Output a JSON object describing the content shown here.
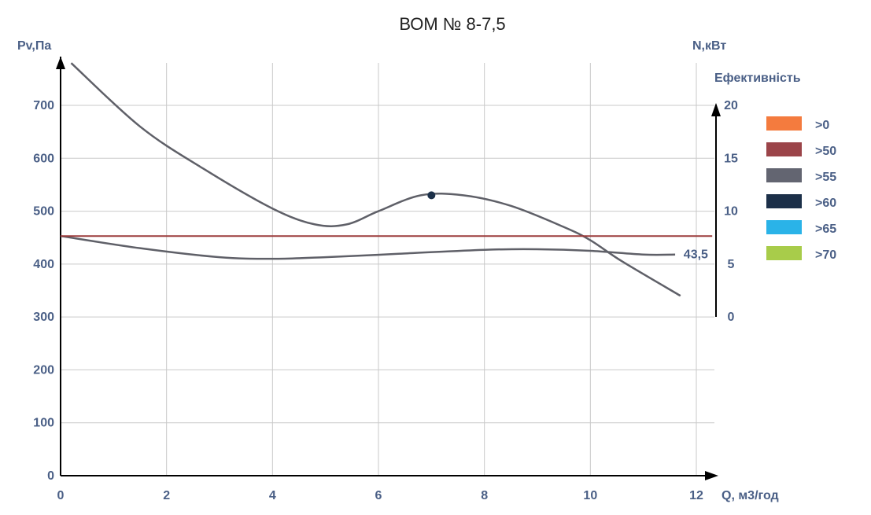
{
  "chart_data": {
    "type": "line",
    "title": "ВОМ № 8-7,5",
    "xlabel": "Q, м3/год",
    "ylabel_left": "Pv,Па",
    "ylabel_right": "N,кВт",
    "ylabel_right_sub": "Ефективність",
    "xlim": [
      0,
      12
    ],
    "ylim_left": [
      0,
      700
    ],
    "ylim_right": [
      0,
      20
    ],
    "x_ticks": [
      "0",
      "2",
      "4",
      "6",
      "8",
      "10",
      "12"
    ],
    "y_ticks_left": [
      "0",
      "100",
      "200",
      "300",
      "400",
      "500",
      "600",
      "700"
    ],
    "y_ticks_right": [
      "0",
      "5",
      "10",
      "15",
      "20"
    ],
    "grid": true,
    "series": [
      {
        "axis": "left",
        "color": "#5f6068",
        "x": [
          0.2,
          1.5,
          2.7,
          4.0,
          4.8,
          5.4,
          6.0,
          6.8,
          7.6,
          8.5,
          9.5,
          10.0,
          10.6,
          11.7
        ],
        "y": [
          780,
          660,
          580,
          505,
          475,
          475,
          500,
          530,
          530,
          510,
          470,
          445,
          405,
          340
        ]
      },
      {
        "axis": "left",
        "color": "#5f6068",
        "x": [
          0,
          1.5,
          3.0,
          4.0,
          5.0,
          6.5,
          8.0,
          9.0,
          10.0,
          11.0,
          11.6
        ],
        "y": [
          453,
          430,
          413,
          410,
          413,
          420,
          427,
          428,
          425,
          418,
          418
        ]
      },
      {
        "axis": "left",
        "color": "#9b3c3c",
        "x": [
          0,
          12.3
        ],
        "y": [
          453,
          453
        ]
      }
    ],
    "marker": {
      "x": 7.0,
      "y": 530,
      "color": "#1c3049"
    },
    "annotation": {
      "text": "43,5",
      "x": 11.7,
      "y": 420
    },
    "legend": {
      "title": "Ефективність",
      "items": [
        {
          "label": ">0",
          "color": "#f47b3e"
        },
        {
          "label": ">50",
          "color": "#9b4449"
        },
        {
          "label": ">55",
          "color": "#636571"
        },
        {
          "label": ">60",
          "color": "#1c3049"
        },
        {
          "label": ">65",
          "color": "#2ab3e8"
        },
        {
          "label": ">70",
          "color": "#a8cc4a"
        }
      ]
    }
  }
}
